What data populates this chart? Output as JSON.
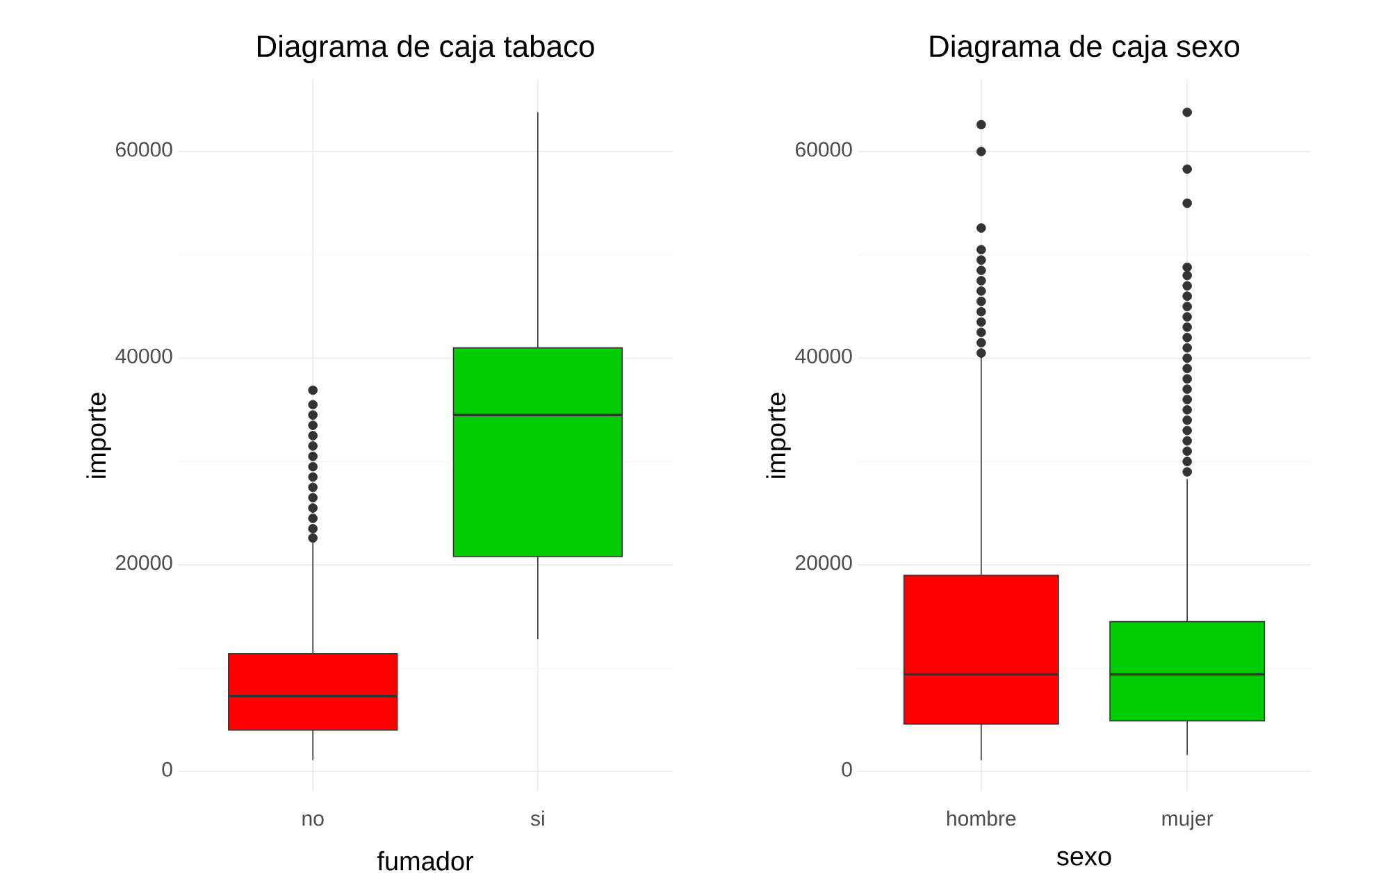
{
  "chart_data": [
    {
      "type": "box",
      "title": "Diagrama de caja tabaco",
      "xlabel": "fumador",
      "ylabel": "importe",
      "categories": [
        "no",
        "si"
      ],
      "colors": [
        "#ff0000",
        "#00cd00"
      ],
      "boxes": [
        {
          "low": 1100,
          "q1": 4000,
          "median": 7300,
          "q3": 11400,
          "high": 22200,
          "outliers": [
            22600,
            23500,
            24500,
            25500,
            26500,
            27500,
            28500,
            29500,
            30500,
            31500,
            32500,
            33500,
            34500,
            35500,
            36900
          ]
        },
        {
          "low": 12800,
          "q1": 20800,
          "median": 34500,
          "q3": 41000,
          "high": 63800
        }
      ],
      "ylim": [
        -2000,
        67000
      ],
      "yticks": [
        0,
        20000,
        40000,
        60000
      ],
      "grid": true
    },
    {
      "type": "box",
      "title": "Diagrama de caja sexo",
      "xlabel": "sexo",
      "ylabel": "importe",
      "categories": [
        "hombre",
        "mujer"
      ],
      "colors": [
        "#ff0000",
        "#00cd00"
      ],
      "boxes": [
        {
          "low": 1100,
          "q1": 4600,
          "median": 9400,
          "q3": 19000,
          "high": 40100,
          "outliers": [
            40500,
            41500,
            42500,
            43500,
            44500,
            45500,
            46500,
            47500,
            48500,
            49500,
            50500,
            52600,
            60000,
            62600
          ]
        },
        {
          "low": 1600,
          "q1": 4900,
          "median": 9400,
          "q3": 14500,
          "high": 28300,
          "outliers": [
            29000,
            30000,
            31000,
            32000,
            33000,
            34000,
            35000,
            36000,
            37000,
            38000,
            39000,
            40000,
            41000,
            42000,
            43000,
            44000,
            45000,
            46000,
            47000,
            48000,
            48800,
            55000,
            58300,
            63800
          ]
        }
      ],
      "ylim": [
        -2000,
        67000
      ],
      "yticks": [
        0,
        20000,
        40000,
        60000
      ],
      "grid": true
    }
  ]
}
